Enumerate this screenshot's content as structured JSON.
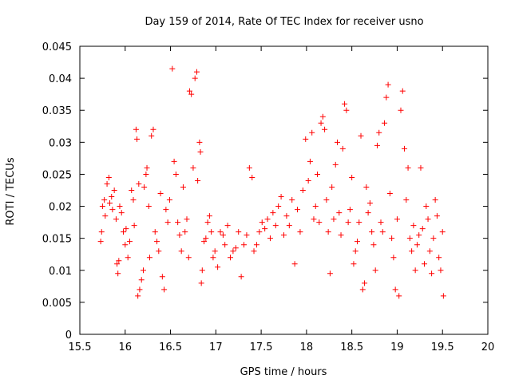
{
  "chart_data": {
    "type": "scatter",
    "title": "Day 159 of 2014, Rate Of TEC Index for receiver usno",
    "xlabel": "GPS time / hours",
    "ylabel": "ROTI / TECUs",
    "xlim": [
      15.5,
      20
    ],
    "ylim": [
      0,
      0.045
    ],
    "x_ticks": [
      15.5,
      16,
      16.5,
      17,
      17.5,
      18,
      18.5,
      19,
      19.5,
      20
    ],
    "x_tick_labels": [
      "15.5",
      "16",
      "16.5",
      "17",
      "17.5",
      "18",
      "18.5",
      "19",
      "19.5",
      "20"
    ],
    "y_ticks": [
      0,
      0.005,
      0.01,
      0.015,
      0.02,
      0.025,
      0.03,
      0.035,
      0.04,
      0.045
    ],
    "y_tick_labels": [
      "0",
      "0.005",
      "0.01",
      "0.015",
      "0.02",
      "0.025",
      "0.03",
      "0.035",
      "0.04",
      "0.045"
    ],
    "marker": "+",
    "marker_color": "#ff0000",
    "grid": false,
    "series": [
      {
        "name": "ROTI",
        "points": [
          [
            15.73,
            0.0145
          ],
          [
            15.74,
            0.016
          ],
          [
            15.75,
            0.02
          ],
          [
            15.77,
            0.021
          ],
          [
            15.78,
            0.0185
          ],
          [
            15.8,
            0.0235
          ],
          [
            15.82,
            0.0245
          ],
          [
            15.83,
            0.0205
          ],
          [
            15.85,
            0.0215
          ],
          [
            15.86,
            0.0195
          ],
          [
            15.88,
            0.0225
          ],
          [
            15.9,
            0.018
          ],
          [
            15.91,
            0.011
          ],
          [
            15.92,
            0.0095
          ],
          [
            15.93,
            0.0115
          ],
          [
            15.94,
            0.02
          ],
          [
            15.96,
            0.019
          ],
          [
            15.98,
            0.016
          ],
          [
            16.0,
            0.014
          ],
          [
            16.01,
            0.0165
          ],
          [
            16.03,
            0.012
          ],
          [
            16.05,
            0.0145
          ],
          [
            16.07,
            0.0225
          ],
          [
            16.09,
            0.021
          ],
          [
            16.1,
            0.017
          ],
          [
            16.12,
            0.032
          ],
          [
            16.13,
            0.0305
          ],
          [
            16.15,
            0.0235
          ],
          [
            16.14,
            0.006
          ],
          [
            16.16,
            0.007
          ],
          [
            16.18,
            0.0085
          ],
          [
            16.2,
            0.01
          ],
          [
            16.21,
            0.023
          ],
          [
            16.23,
            0.025
          ],
          [
            16.24,
            0.026
          ],
          [
            16.26,
            0.02
          ],
          [
            16.27,
            0.012
          ],
          [
            16.29,
            0.031
          ],
          [
            16.31,
            0.032
          ],
          [
            16.33,
            0.016
          ],
          [
            16.35,
            0.0145
          ],
          [
            16.37,
            0.013
          ],
          [
            16.39,
            0.022
          ],
          [
            16.41,
            0.009
          ],
          [
            16.43,
            0.007
          ],
          [
            16.45,
            0.0195
          ],
          [
            16.47,
            0.0175
          ],
          [
            16.49,
            0.021
          ],
          [
            16.52,
            0.0415
          ],
          [
            16.54,
            0.027
          ],
          [
            16.56,
            0.025
          ],
          [
            16.58,
            0.0175
          ],
          [
            16.6,
            0.0155
          ],
          [
            16.62,
            0.013
          ],
          [
            16.64,
            0.023
          ],
          [
            16.66,
            0.016
          ],
          [
            16.68,
            0.018
          ],
          [
            16.7,
            0.012
          ],
          [
            16.71,
            0.038
          ],
          [
            16.73,
            0.0375
          ],
          [
            16.75,
            0.026
          ],
          [
            16.77,
            0.04
          ],
          [
            16.79,
            0.041
          ],
          [
            16.8,
            0.024
          ],
          [
            16.82,
            0.03
          ],
          [
            16.83,
            0.0285
          ],
          [
            16.84,
            0.008
          ],
          [
            16.85,
            0.01
          ],
          [
            16.87,
            0.0145
          ],
          [
            16.89,
            0.015
          ],
          [
            16.91,
            0.0175
          ],
          [
            16.93,
            0.0185
          ],
          [
            16.95,
            0.016
          ],
          [
            16.97,
            0.012
          ],
          [
            16.99,
            0.013
          ],
          [
            17.02,
            0.0105
          ],
          [
            17.05,
            0.016
          ],
          [
            17.08,
            0.0155
          ],
          [
            17.1,
            0.014
          ],
          [
            17.13,
            0.017
          ],
          [
            17.16,
            0.012
          ],
          [
            17.19,
            0.013
          ],
          [
            17.22,
            0.0135
          ],
          [
            17.25,
            0.016
          ],
          [
            17.28,
            0.009
          ],
          [
            17.31,
            0.014
          ],
          [
            17.34,
            0.0155
          ],
          [
            17.37,
            0.026
          ],
          [
            17.4,
            0.0245
          ],
          [
            17.42,
            0.013
          ],
          [
            17.45,
            0.014
          ],
          [
            17.48,
            0.016
          ],
          [
            17.51,
            0.0175
          ],
          [
            17.54,
            0.0165
          ],
          [
            17.57,
            0.018
          ],
          [
            17.6,
            0.015
          ],
          [
            17.63,
            0.019
          ],
          [
            17.66,
            0.017
          ],
          [
            17.69,
            0.02
          ],
          [
            17.72,
            0.0215
          ],
          [
            17.75,
            0.0155
          ],
          [
            17.78,
            0.0185
          ],
          [
            17.81,
            0.017
          ],
          [
            17.84,
            0.021
          ],
          [
            17.87,
            0.011
          ],
          [
            17.9,
            0.0195
          ],
          [
            17.93,
            0.016
          ],
          [
            17.96,
            0.0225
          ],
          [
            17.99,
            0.0305
          ],
          [
            18.02,
            0.024
          ],
          [
            18.04,
            0.027
          ],
          [
            18.06,
            0.0315
          ],
          [
            18.08,
            0.018
          ],
          [
            18.1,
            0.02
          ],
          [
            18.12,
            0.025
          ],
          [
            18.14,
            0.0175
          ],
          [
            18.16,
            0.033
          ],
          [
            18.18,
            0.034
          ],
          [
            18.2,
            0.032
          ],
          [
            18.22,
            0.021
          ],
          [
            18.24,
            0.016
          ],
          [
            18.26,
            0.0095
          ],
          [
            18.28,
            0.023
          ],
          [
            18.3,
            0.018
          ],
          [
            18.32,
            0.0265
          ],
          [
            18.34,
            0.03
          ],
          [
            18.36,
            0.019
          ],
          [
            18.38,
            0.0155
          ],
          [
            18.4,
            0.029
          ],
          [
            18.42,
            0.036
          ],
          [
            18.44,
            0.035
          ],
          [
            18.46,
            0.0175
          ],
          [
            18.48,
            0.0195
          ],
          [
            18.5,
            0.0245
          ],
          [
            18.52,
            0.011
          ],
          [
            18.54,
            0.013
          ],
          [
            18.56,
            0.0145
          ],
          [
            18.58,
            0.0175
          ],
          [
            18.6,
            0.031
          ],
          [
            18.62,
            0.007
          ],
          [
            18.64,
            0.008
          ],
          [
            18.66,
            0.023
          ],
          [
            18.68,
            0.019
          ],
          [
            18.7,
            0.0205
          ],
          [
            18.72,
            0.016
          ],
          [
            18.74,
            0.014
          ],
          [
            18.76,
            0.01
          ],
          [
            18.78,
            0.0295
          ],
          [
            18.8,
            0.0315
          ],
          [
            18.82,
            0.0175
          ],
          [
            18.84,
            0.016
          ],
          [
            18.86,
            0.033
          ],
          [
            18.88,
            0.037
          ],
          [
            18.9,
            0.039
          ],
          [
            18.92,
            0.022
          ],
          [
            18.94,
            0.015
          ],
          [
            18.96,
            0.012
          ],
          [
            18.98,
            0.007
          ],
          [
            19.0,
            0.018
          ],
          [
            19.02,
            0.006
          ],
          [
            19.04,
            0.035
          ],
          [
            19.06,
            0.038
          ],
          [
            19.08,
            0.029
          ],
          [
            19.1,
            0.021
          ],
          [
            19.12,
            0.026
          ],
          [
            19.14,
            0.015
          ],
          [
            19.16,
            0.013
          ],
          [
            19.18,
            0.017
          ],
          [
            19.2,
            0.01
          ],
          [
            19.22,
            0.014
          ],
          [
            19.24,
            0.0155
          ],
          [
            19.26,
            0.026
          ],
          [
            19.28,
            0.0165
          ],
          [
            19.3,
            0.011
          ],
          [
            19.32,
            0.02
          ],
          [
            19.34,
            0.018
          ],
          [
            19.36,
            0.013
          ],
          [
            19.38,
            0.0095
          ],
          [
            19.4,
            0.015
          ],
          [
            19.42,
            0.021
          ],
          [
            19.44,
            0.0185
          ],
          [
            19.46,
            0.012
          ],
          [
            19.48,
            0.01
          ],
          [
            19.5,
            0.016
          ],
          [
            19.51,
            0.006
          ]
        ]
      }
    ]
  }
}
